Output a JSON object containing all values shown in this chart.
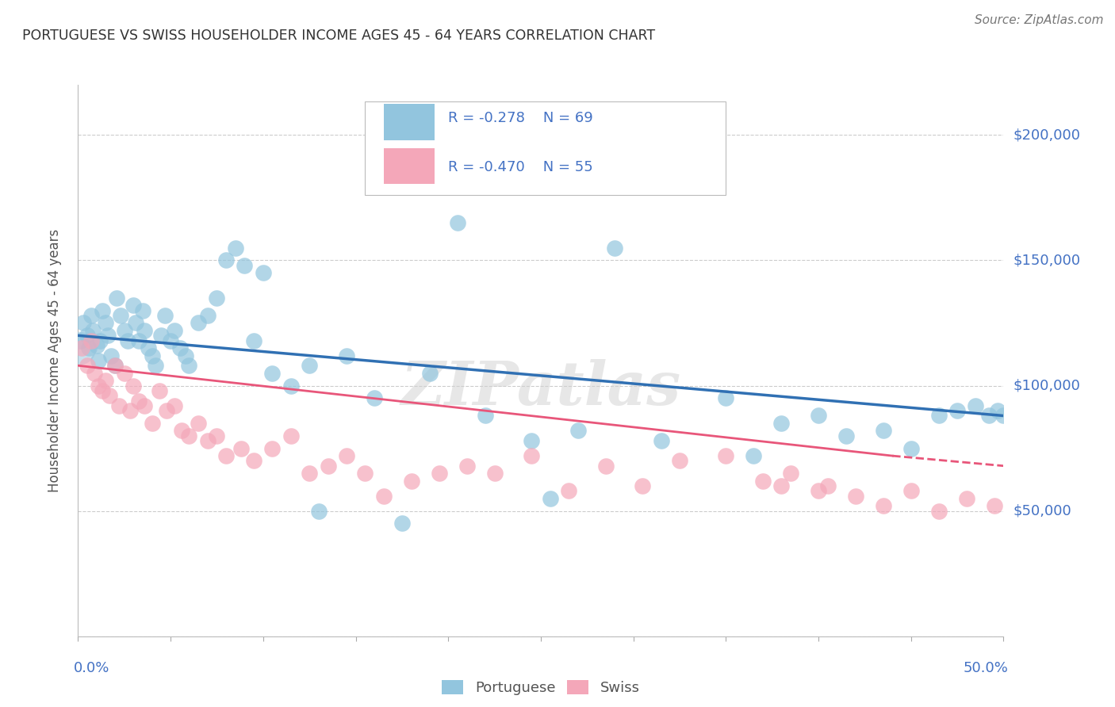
{
  "title": "PORTUGUESE VS SWISS HOUSEHOLDER INCOME AGES 45 - 64 YEARS CORRELATION CHART",
  "source": "Source: ZipAtlas.com",
  "ylabel": "Householder Income Ages 45 - 64 years",
  "watermark": "ZIPatlas",
  "xlim": [
    0.0,
    50.0
  ],
  "ylim": [
    0,
    220000
  ],
  "portuguese_R": "-0.278",
  "portuguese_N": "69",
  "swiss_R": "-0.470",
  "swiss_N": "55",
  "blue_color": "#92c5de",
  "pink_color": "#f4a7b9",
  "blue_line_color": "#3070b3",
  "pink_line_color": "#e8567a",
  "label_color": "#4472c4",
  "portuguese_scatter_x": [
    0.1,
    0.3,
    0.5,
    0.6,
    0.7,
    0.8,
    1.0,
    1.1,
    1.2,
    1.3,
    1.5,
    1.6,
    1.8,
    2.0,
    2.1,
    2.3,
    2.5,
    2.7,
    3.0,
    3.1,
    3.3,
    3.5,
    3.6,
    3.8,
    4.0,
    4.2,
    4.5,
    4.7,
    5.0,
    5.2,
    5.5,
    5.8,
    6.0,
    6.5,
    7.0,
    7.5,
    8.0,
    8.5,
    9.0,
    9.5,
    10.0,
    10.5,
    11.5,
    12.5,
    13.0,
    14.5,
    16.0,
    17.5,
    19.0,
    20.5,
    22.0,
    24.5,
    25.5,
    27.0,
    29.0,
    31.5,
    35.0,
    36.5,
    38.0,
    40.0,
    41.5,
    43.5,
    45.0,
    46.5,
    47.5,
    48.5,
    49.2,
    49.7,
    50.0
  ],
  "portuguese_scatter_y": [
    118000,
    125000,
    120000,
    115000,
    128000,
    122000,
    116000,
    110000,
    118000,
    130000,
    125000,
    120000,
    112000,
    108000,
    135000,
    128000,
    122000,
    118000,
    132000,
    125000,
    118000,
    130000,
    122000,
    115000,
    112000,
    108000,
    120000,
    128000,
    118000,
    122000,
    115000,
    112000,
    108000,
    125000,
    128000,
    135000,
    150000,
    155000,
    148000,
    118000,
    145000,
    105000,
    100000,
    108000,
    50000,
    112000,
    95000,
    45000,
    105000,
    165000,
    88000,
    78000,
    55000,
    82000,
    155000,
    78000,
    95000,
    72000,
    85000,
    88000,
    80000,
    82000,
    75000,
    88000,
    90000,
    92000,
    88000,
    90000,
    88000
  ],
  "swiss_scatter_x": [
    0.2,
    0.5,
    0.7,
    0.9,
    1.1,
    1.3,
    1.5,
    1.7,
    2.0,
    2.2,
    2.5,
    2.8,
    3.0,
    3.3,
    3.6,
    4.0,
    4.4,
    4.8,
    5.2,
    5.6,
    6.0,
    6.5,
    7.0,
    7.5,
    8.0,
    8.8,
    9.5,
    10.5,
    11.5,
    12.5,
    13.5,
    14.5,
    15.5,
    16.5,
    18.0,
    19.5,
    21.0,
    22.5,
    24.5,
    26.5,
    28.5,
    30.5,
    32.5,
    35.0,
    37.0,
    38.5,
    40.5,
    42.0,
    43.5,
    45.0,
    46.5,
    48.0,
    49.5,
    40.0,
    38.0
  ],
  "swiss_scatter_y": [
    115000,
    108000,
    118000,
    105000,
    100000,
    98000,
    102000,
    96000,
    108000,
    92000,
    105000,
    90000,
    100000,
    94000,
    92000,
    85000,
    98000,
    90000,
    92000,
    82000,
    80000,
    85000,
    78000,
    80000,
    72000,
    75000,
    70000,
    75000,
    80000,
    65000,
    68000,
    72000,
    65000,
    56000,
    62000,
    65000,
    68000,
    65000,
    72000,
    58000,
    68000,
    60000,
    70000,
    72000,
    62000,
    65000,
    60000,
    56000,
    52000,
    58000,
    50000,
    55000,
    52000,
    58000,
    60000
  ],
  "blue_trend_x0": 0,
  "blue_trend_y0": 120000,
  "blue_trend_x1": 50,
  "blue_trend_y1": 88000,
  "pink_solid_x0": 0,
  "pink_solid_y0": 108000,
  "pink_solid_x1": 44,
  "pink_solid_y1": 72000,
  "pink_dash_x0": 44,
  "pink_dash_y0": 72000,
  "pink_dash_x1": 50,
  "pink_dash_y1": 68000
}
